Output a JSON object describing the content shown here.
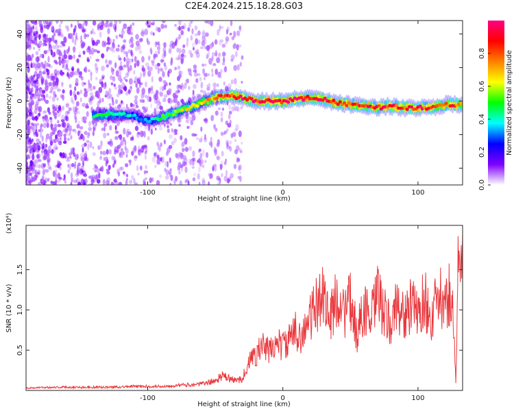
{
  "chart_data": [
    {
      "type": "heatmap",
      "title": "C2E4.2024.215.18.28.G03",
      "xlabel": "Height of straight line (km)",
      "ylabel": "Frequency (Hz)",
      "xlim": [
        -190,
        133
      ],
      "ylim": [
        -50,
        48
      ],
      "xticks": [
        -100,
        0,
        100
      ],
      "yticks": [
        -40,
        -20,
        0,
        20,
        40
      ],
      "colorbar": {
        "label": "Normalized spectral amplitude",
        "range": [
          0,
          1
        ],
        "ticks": [
          0.0,
          0.2,
          0.4,
          0.6,
          0.8
        ],
        "colors": [
          "#ffffff",
          "#7f00ff",
          "#0000ff",
          "#00ffff",
          "#00ff00",
          "#ffff00",
          "#ff8000",
          "#ff0000",
          "#ff0080"
        ]
      },
      "ridge": {
        "x": [
          -140,
          -130,
          -120,
          -110,
          -100,
          -90,
          -80,
          -70,
          -60,
          -50,
          -40,
          -30,
          -20,
          -10,
          0,
          10,
          20,
          30,
          40,
          50,
          60,
          70,
          80,
          90,
          100,
          110,
          120,
          133
        ],
        "y": [
          -9,
          -8,
          -8,
          -9,
          -12,
          -10,
          -7,
          -4,
          -1,
          2,
          3,
          2,
          0,
          0,
          0,
          1,
          2,
          1,
          -1,
          -2,
          -3,
          -4,
          -3,
          -4,
          -4,
          -4,
          -2,
          -2
        ],
        "amplitude": [
          0.45,
          0.5,
          0.4,
          0.35,
          0.3,
          0.5,
          0.55,
          0.6,
          0.65,
          0.8,
          0.85,
          0.9,
          0.9,
          0.92,
          0.95,
          0.95,
          0.92,
          0.9,
          0.88,
          0.85,
          0.85,
          0.88,
          0.88,
          0.85,
          0.88,
          0.85,
          0.85,
          0.8
        ]
      }
    },
    {
      "type": "line",
      "xlabel": "Height of straight line (km)",
      "ylabel": "SNR (10 * v/v)",
      "y_multiplier": "(x10⁴)",
      "xlim": [
        -190,
        133
      ],
      "ylim": [
        0,
        2.05
      ],
      "xticks": [
        -100,
        0,
        100
      ],
      "yticks": [
        0.5,
        1.0,
        1.5
      ],
      "series": [
        {
          "color": "#e8383d",
          "x": [
            -190,
            -170,
            -150,
            -130,
            -110,
            -90,
            -80,
            -70,
            -60,
            -50,
            -45,
            -40,
            -35,
            -30,
            -25,
            -20,
            -15,
            -10,
            -5,
            0,
            5,
            10,
            15,
            20,
            25,
            30,
            35,
            40,
            45,
            50,
            55,
            60,
            65,
            70,
            75,
            80,
            85,
            90,
            95,
            100,
            105,
            110,
            115,
            120,
            125,
            128,
            130,
            133
          ],
          "y": [
            0.03,
            0.04,
            0.04,
            0.04,
            0.05,
            0.05,
            0.06,
            0.07,
            0.08,
            0.12,
            0.18,
            0.15,
            0.12,
            0.15,
            0.35,
            0.45,
            0.55,
            0.48,
            0.6,
            0.55,
            0.62,
            0.75,
            0.68,
            0.9,
            1.05,
            1.25,
            0.85,
            1.2,
            0.95,
            1.1,
            0.7,
            1.05,
            0.85,
            1.2,
            0.95,
            0.8,
            1.1,
            0.9,
            1.05,
            0.95,
            1.15,
            0.85,
            1.2,
            1.0,
            1.3,
            0.1,
            1.75,
            1.95
          ]
        }
      ]
    }
  ]
}
